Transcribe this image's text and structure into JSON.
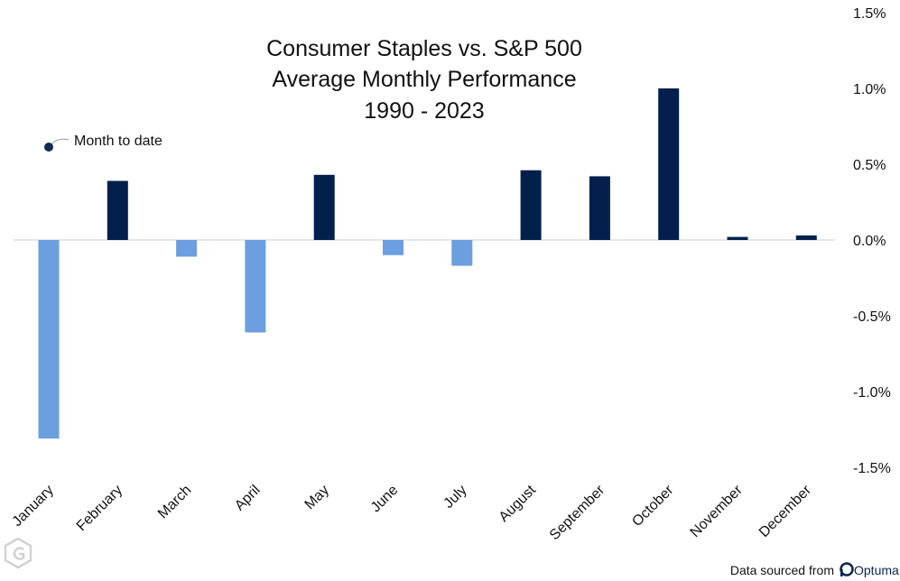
{
  "chart_data": {
    "type": "bar",
    "title_lines": [
      "Consumer Staples vs. S&P 500",
      "Average Monthly Performance",
      "1990 - 2023"
    ],
    "categories": [
      "January",
      "February",
      "March",
      "April",
      "May",
      "June",
      "July",
      "August",
      "September",
      "October",
      "November",
      "December"
    ],
    "values": [
      -1.31,
      0.39,
      -0.11,
      -0.61,
      0.43,
      -0.1,
      -0.17,
      0.46,
      0.42,
      1.0,
      0.02,
      0.03
    ],
    "month_to_date_index": 0,
    "ylim": [
      -1.5,
      1.5
    ],
    "y_ticks": [
      1.5,
      1.0,
      0.5,
      0.0,
      -0.5,
      -1.0,
      -1.5
    ],
    "y_tick_labels": [
      "1.5%",
      "1.0%",
      "0.5%",
      "0.0%",
      "-0.5%",
      "-1.0%",
      "-1.5%"
    ],
    "y_axis_side": "right",
    "grid": false,
    "colors": {
      "positive": "#03204d",
      "negative": "#6c9fe0",
      "zero_line": "#cccccc",
      "annotation_dot": "#0f2a55"
    },
    "annotation": {
      "label": "Month to date"
    }
  },
  "footer": {
    "source_label": "Data sourced from",
    "brand": "Optuma"
  },
  "logo_icon": "hexagon-g-logo"
}
